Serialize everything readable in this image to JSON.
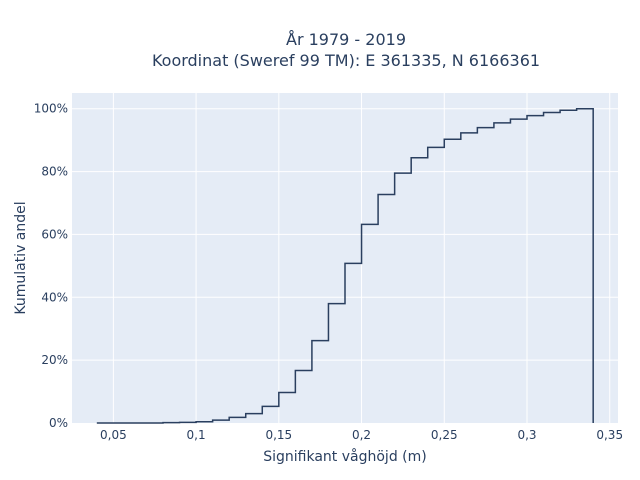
{
  "chart_data": {
    "type": "line",
    "line_shape": "step",
    "title_lines": [
      "År 1979 - 2019",
      "Koordinat (Sweref 99 TM): E 361335, N 6166361"
    ],
    "xlabel": "Signifikant våghöjd (m)",
    "ylabel": "Kumulativ andel",
    "xlim": [
      0.025,
      0.355
    ],
    "ylim": [
      0,
      1.05
    ],
    "x_ticks": [
      0.05,
      0.1,
      0.15,
      0.2,
      0.25,
      0.3,
      0.35
    ],
    "x_tick_labels": [
      "0,05",
      "0,1",
      "0,15",
      "0,2",
      "0,25",
      "0,3",
      "0,35"
    ],
    "y_ticks": [
      0,
      0.2,
      0.4,
      0.6,
      0.8,
      1.0
    ],
    "y_tick_labels": [
      "0%",
      "20%",
      "40%",
      "60%",
      "80%",
      "100%"
    ],
    "grid": true,
    "colors": {
      "line": "#2a3f5f",
      "plot_bg": "#e5ecf6",
      "grid": "#ffffff",
      "text": "#2a3f5f"
    },
    "x": [
      0.04,
      0.05,
      0.06,
      0.07,
      0.08,
      0.09,
      0.1,
      0.11,
      0.12,
      0.13,
      0.14,
      0.15,
      0.16,
      0.17,
      0.18,
      0.19,
      0.2,
      0.21,
      0.22,
      0.23,
      0.24,
      0.25,
      0.26,
      0.27,
      0.28,
      0.29,
      0.3,
      0.31,
      0.32,
      0.33,
      0.34
    ],
    "y": [
      0.0,
      0.0,
      0.0,
      0.0,
      0.001,
      0.002,
      0.004,
      0.009,
      0.018,
      0.03,
      0.053,
      0.097,
      0.167,
      0.262,
      0.38,
      0.508,
      0.632,
      0.727,
      0.795,
      0.844,
      0.877,
      0.903,
      0.923,
      0.94,
      0.955,
      0.967,
      0.978,
      0.988,
      0.995,
      1.0,
      0.0
    ]
  }
}
